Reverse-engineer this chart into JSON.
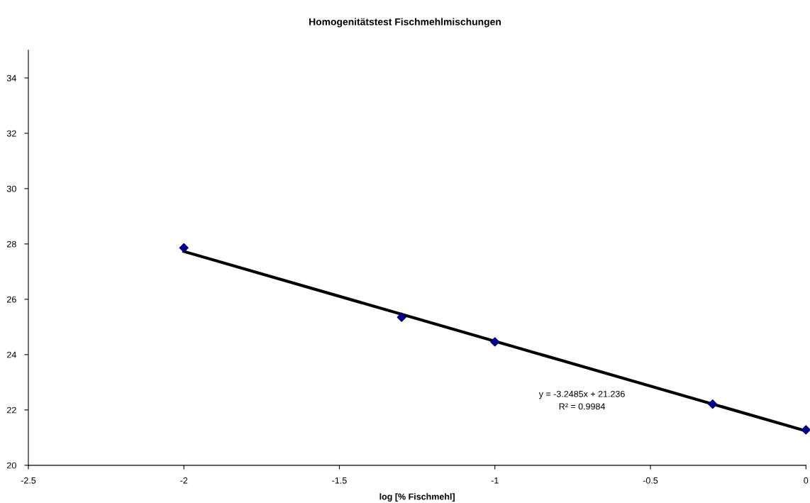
{
  "chart_data": {
    "type": "scatter",
    "title": "Homogenitätstest Fischmehlmischungen",
    "xlabel": "log [% Fischmehl]",
    "x": [
      -2,
      -1.3,
      -1,
      -0.3,
      0
    ],
    "series": [
      {
        "color": "#000080",
        "marker": "diamond",
        "values": [
          27.86,
          25.35,
          24.46,
          22.21,
          21.28
        ]
      },
      {
        "type": "line",
        "color": "#000000",
        "marker": "none",
        "x": [
          -2,
          0
        ],
        "values": [
          27.73,
          21.24
        ]
      }
    ],
    "annotations": [
      "y = -3.2485x + 21.236",
      "R² = 0.9984"
    ],
    "xlim": [
      -2.5,
      0
    ],
    "xticks": [
      -2.5,
      -2,
      -1.5,
      -1,
      -0.5,
      0
    ],
    "ylim": [
      20,
      35
    ],
    "yticks": [
      20,
      22,
      24,
      26,
      28,
      30,
      32,
      34
    ],
    "grid": false,
    "legend": false
  }
}
